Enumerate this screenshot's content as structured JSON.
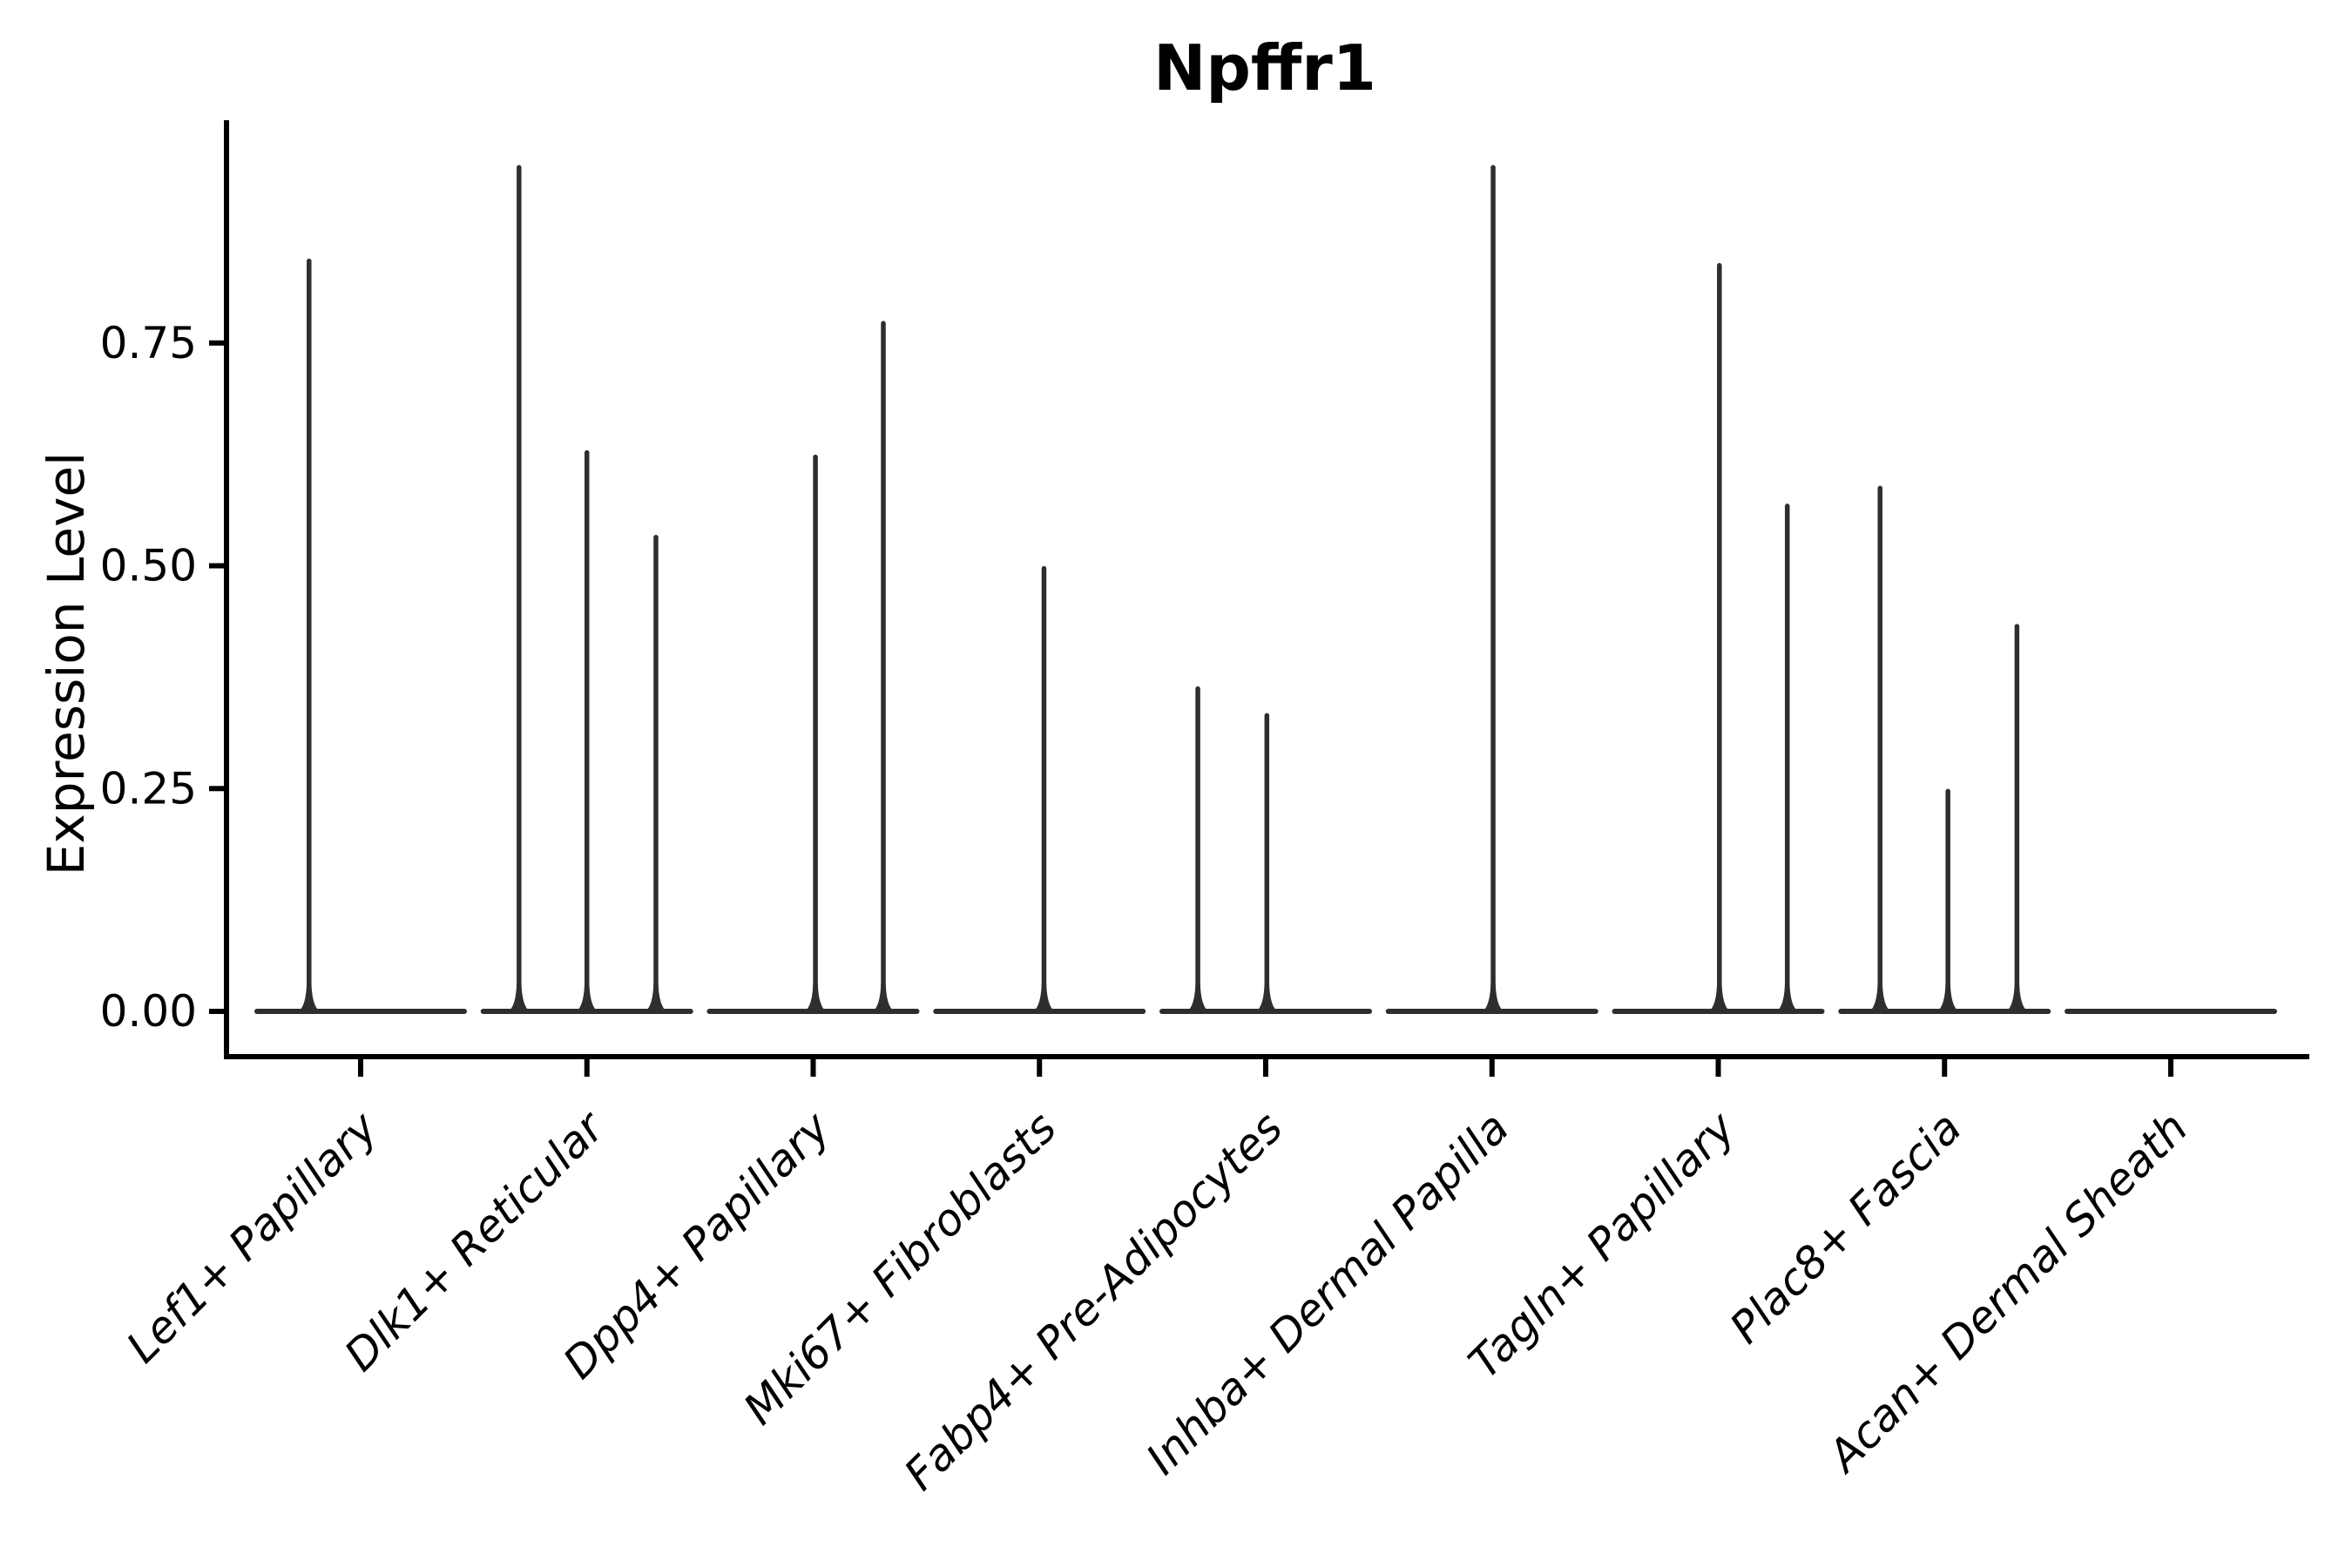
{
  "chart_data": {
    "type": "violin",
    "title": "Npffr1",
    "ylabel": "Expression Level",
    "xlabel": "",
    "y_ticks": [
      "0.00",
      "0.25",
      "0.50",
      "0.75"
    ],
    "y_tick_values": [
      0,
      0.25,
      0.5,
      0.75
    ],
    "ylim": [
      -0.047,
      1.02
    ],
    "grid": "off",
    "legend": "none",
    "x_label_rotation_deg": 45,
    "x_label_style": "italic",
    "description": "Violin plot of single-gene expression; each cell-type group shows flat zero-density violins with thin spikes up to the maximum expressing cells",
    "categories": [
      {
        "label": "Lef1+ Papillary",
        "spikes": [
          {
            "offset": -0.228,
            "value": 0.845
          }
        ]
      },
      {
        "label": "Dlk1+ Reticular",
        "spikes": [
          {
            "offset": -0.3,
            "value": 0.95
          },
          {
            "offset": 0.0,
            "value": 0.63
          },
          {
            "offset": 0.305,
            "value": 0.535
          }
        ]
      },
      {
        "label": "Dpp4+ Papillary",
        "spikes": [
          {
            "offset": 0.01,
            "value": 0.625
          },
          {
            "offset": 0.31,
            "value": 0.775
          }
        ]
      },
      {
        "label": "Mki67+ Fibroblasts",
        "spikes": [
          {
            "offset": 0.02,
            "value": 0.5
          }
        ]
      },
      {
        "label": "Fabp4+ Pre-Adipocytes",
        "spikes": [
          {
            "offset": -0.3,
            "value": 0.365
          },
          {
            "offset": 0.005,
            "value": 0.335
          }
        ]
      },
      {
        "label": "Inhba+ Dermal Papilla",
        "spikes": [
          {
            "offset": 0.005,
            "value": 0.95
          }
        ]
      },
      {
        "label": "Tagln+ Papillary",
        "spikes": [
          {
            "offset": 0.005,
            "value": 0.84
          },
          {
            "offset": 0.305,
            "value": 0.57
          }
        ]
      },
      {
        "label": "Plac8+ Fascia",
        "spikes": [
          {
            "offset": -0.285,
            "value": 0.59
          },
          {
            "offset": 0.015,
            "value": 0.25
          },
          {
            "offset": 0.32,
            "value": 0.435
          }
        ]
      },
      {
        "label": "Acan+ Dermal Sheath",
        "spikes": []
      }
    ],
    "colors": {
      "violin": "#2e2e2e",
      "axis": "#000000",
      "background": "#ffffff"
    }
  }
}
